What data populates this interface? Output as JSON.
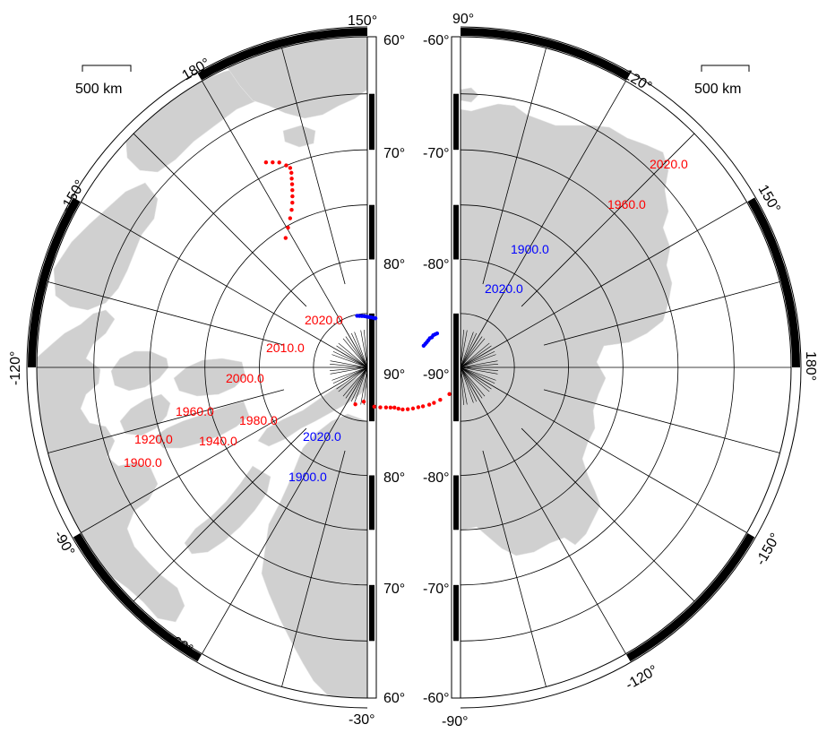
{
  "colors": {
    "land": "#d0d0d0",
    "land_edge": "#e6e6e6",
    "grid": "#000000",
    "frame_dark": "#000000",
    "frame_light": "#ffffff",
    "north_track": "#ff0000",
    "south_track": "#0000ff"
  },
  "north_panel": {
    "scale_bar": "500 km",
    "longitude_labels": [
      "150°",
      "180°",
      "-150°",
      "-120°",
      "-90°",
      "-60°",
      "-30°"
    ],
    "latitude_labels_top": [
      "60°",
      "70°",
      "80°"
    ],
    "latitude_labels_bottom": [
      "80°",
      "70°",
      "60°"
    ],
    "pole_label": "90°",
    "north_pole_track": {
      "labels": [
        "2020.0",
        "2010.0",
        "2000.0",
        "1980.0",
        "1960.0",
        "1940.0",
        "1920.0",
        "1900.0"
      ],
      "points_lat_lon": [
        [
          86.4,
          162
        ],
        [
          86.8,
          174
        ],
        [
          86.3,
          -170
        ],
        [
          86.1,
          -162
        ],
        [
          85.9,
          -155
        ],
        [
          85.7,
          -150
        ],
        [
          85.5,
          -146
        ],
        [
          85.2,
          -143
        ],
        [
          84.9,
          -140
        ],
        [
          84.6,
          -136
        ],
        [
          84.3,
          -132
        ],
        [
          84.0,
          -128
        ],
        [
          83.7,
          -125
        ],
        [
          83.3,
          -121
        ],
        [
          83.0,
          -118
        ],
        [
          82.6,
          -114
        ],
        [
          82.0,
          -108
        ],
        [
          81.5,
          -104
        ],
        [
          81.1,
          -101
        ],
        [
          80.6,
          -98
        ],
        [
          80.4,
          -96
        ],
        [
          80.2,
          -95
        ],
        [
          79.9,
          -94
        ],
        [
          79.6,
          -93
        ],
        [
          79.4,
          -93
        ],
        [
          79.2,
          -92
        ],
        [
          79.0,
          -92
        ],
        [
          78.9,
          -92
        ],
        [
          78.7,
          -92
        ]
      ]
    },
    "south_pole_track_projected": {
      "labels": [
        "2020.0",
        "1900.0"
      ],
      "points_lat_lon": [
        [
          84.4,
          -69
        ],
        [
          84.2,
          -68
        ],
        [
          84.0,
          -67
        ],
        [
          83.8,
          -66
        ],
        [
          83.6,
          -65
        ],
        [
          83.4,
          -65
        ],
        [
          83.2,
          -64
        ],
        [
          83.0,
          -64
        ],
        [
          82.8,
          -64
        ]
      ]
    }
  },
  "south_panel": {
    "scale_bar": "500 km",
    "longitude_labels": [
      "120°",
      "150°",
      "180°",
      "-150°",
      "-120°",
      "-90°",
      "90°"
    ],
    "latitude_labels_top": [
      "-60°",
      "-70°",
      "-80°"
    ],
    "latitude_labels_bottom": [
      "-80°",
      "-70°",
      "-60°"
    ],
    "pole_label": "-90°",
    "south_pole_track": {
      "labels": [
        "2020.0",
        "1960.0"
      ],
      "points_lat_lon": [
        [
          -64.2,
          136.5
        ],
        [
          -64.6,
          137.5
        ],
        [
          -65.0,
          138.5
        ],
        [
          -65.6,
          139.2
        ],
        [
          -66.0,
          139.5
        ],
        [
          -66.4,
          139.0
        ],
        [
          -66.8,
          138.2
        ],
        [
          -67.2,
          137.4
        ],
        [
          -67.6,
          136.5
        ],
        [
          -68.0,
          135.5
        ],
        [
          -68.4,
          134.4
        ],
        [
          -68.8,
          133.0
        ],
        [
          -69.2,
          131.2
        ],
        [
          -69.6,
          129.0
        ],
        [
          -70.0,
          126.5
        ]
      ]
    },
    "north_pole_track_projected": {
      "labels": [
        "1900.0",
        "2020.0"
      ],
      "points_lat_lon": [
        [
          -79.3,
          116.5
        ],
        [
          -79.5,
          117.0
        ],
        [
          -79.7,
          117.5
        ],
        [
          -79.9,
          118.0
        ],
        [
          -80.1,
          118.4
        ],
        [
          -80.3,
          118.8
        ],
        [
          -80.5,
          119.2
        ],
        [
          -80.7,
          119.6
        ],
        [
          -80.9,
          120.0
        ]
      ]
    }
  }
}
